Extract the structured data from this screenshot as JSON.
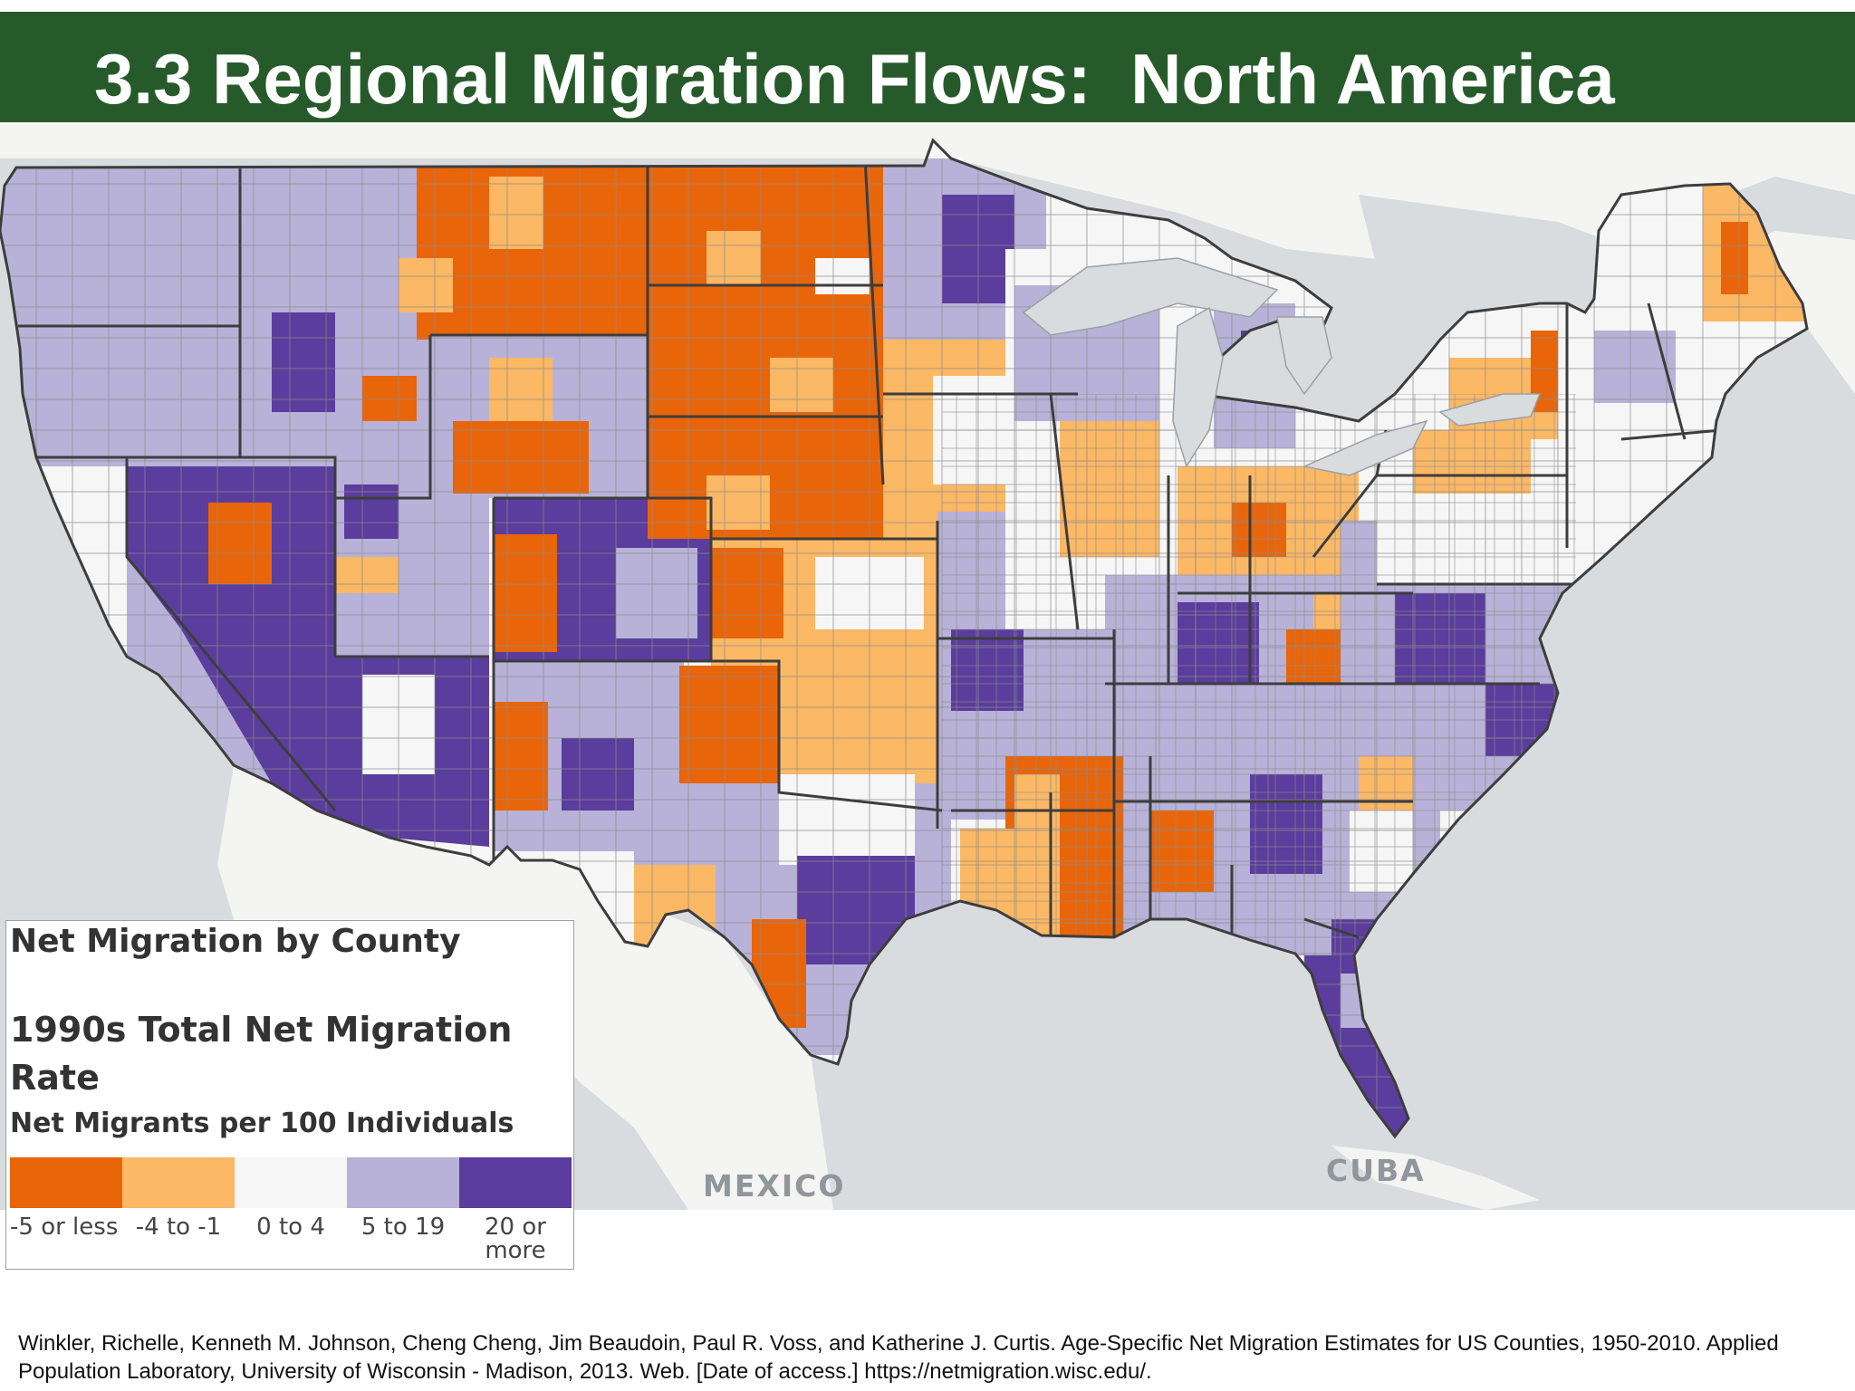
{
  "header": {
    "title": "3.3 Regional Migration Flows:  North America"
  },
  "map": {
    "place_labels": {
      "mexico": "MEXICO",
      "cuba": "CUBA"
    },
    "colors": {
      "ocean": "#d9dcdf",
      "land": "#f4f4f2",
      "state_border": "#3d3d3d"
    }
  },
  "legend": {
    "title": "Net Migration by County",
    "subtitle": "1990s Total Net Migration Rate",
    "unit": "Net Migrants per 100 Individuals",
    "classes": [
      {
        "label": "-5 or less",
        "color": "#e8650a"
      },
      {
        "label": "-4 to -1",
        "color": "#fbb865"
      },
      {
        "label": "0 to 4",
        "color": "#f6f6f6"
      },
      {
        "label": "5 to 19",
        "color": "#b8b2d8"
      },
      {
        "label": "20 or more",
        "color": "#5a3d9c"
      }
    ]
  },
  "citation": "Winkler, Richelle, Kenneth M. Johnson, Cheng Cheng, Jim Beaudoin, Paul R. Voss, and Katherine J. Curtis. Age-Specific Net Migration Estimates for US Counties, 1950-2010. Applied Population Laboratory, University of Wisconsin - Madison, 2013. Web. [Date of access.] https://netmigration.wisc.edu/."
}
